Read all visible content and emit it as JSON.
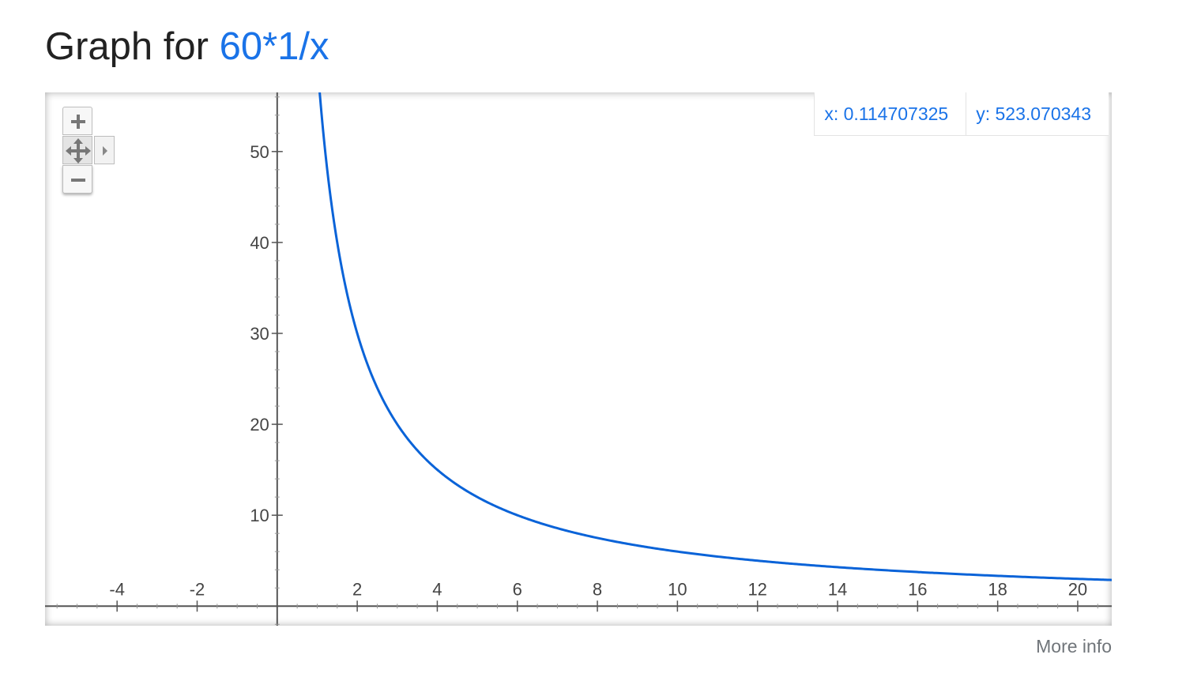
{
  "title": {
    "prefix": "Graph for",
    "expression": "60*1/x"
  },
  "readout": {
    "x": "x: 0.114707325",
    "y": "y: 523.070343"
  },
  "controls": {
    "zoom_in_icon": "plus-icon",
    "pan_icon": "move-icon",
    "zoom_out_icon": "minus-icon",
    "expand_icon": "triangle-right-icon"
  },
  "more_info": "More info",
  "colors": {
    "curve": "#0a63d8",
    "link": "#1a73e8",
    "axis": "#555555"
  },
  "chart_data": {
    "type": "line",
    "function": "60*1/x",
    "x_range": [
      -5.8,
      20.85
    ],
    "y_range": [
      -2.15,
      56.5
    ],
    "x_ticks": [
      -4,
      -2,
      2,
      4,
      6,
      8,
      10,
      12,
      14,
      16,
      18,
      20
    ],
    "x_tick_labels": [
      "-4",
      "-2",
      "2",
      "4",
      "6",
      "8",
      "10",
      "12",
      "14",
      "16",
      "18",
      "20"
    ],
    "y_ticks": [
      10,
      20,
      30,
      40,
      50
    ],
    "y_tick_labels": [
      "10",
      "20",
      "30",
      "40",
      "50"
    ],
    "series": [
      {
        "points": [
          [
            1.06,
            56.5
          ],
          [
            1.2,
            50
          ],
          [
            1.5,
            40
          ],
          [
            2,
            30
          ],
          [
            2.5,
            24
          ],
          [
            3,
            20
          ],
          [
            4,
            15
          ],
          [
            5,
            12
          ],
          [
            6,
            10
          ],
          [
            8,
            7.5
          ],
          [
            10,
            6
          ],
          [
            12,
            5
          ],
          [
            14,
            4.29
          ],
          [
            16,
            3.75
          ],
          [
            18,
            3.33
          ],
          [
            20,
            3
          ],
          [
            20.85,
            2.88
          ]
        ]
      }
    ],
    "grid": false
  }
}
